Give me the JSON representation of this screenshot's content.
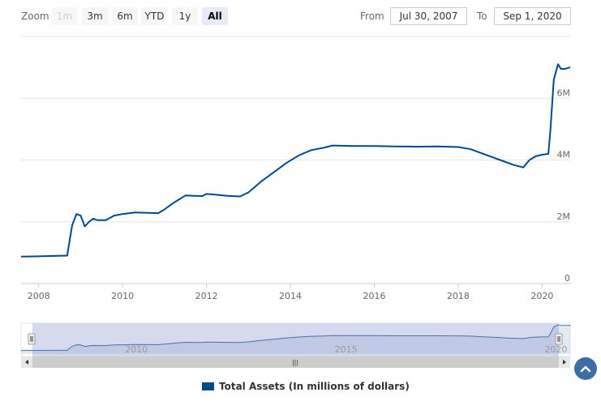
{
  "zoom": {
    "label": "Zoom",
    "buttons": [
      {
        "label": "1m",
        "state": "disabled"
      },
      {
        "label": "3m",
        "state": "normal"
      },
      {
        "label": "6m",
        "state": "normal"
      },
      {
        "label": "YTD",
        "state": "normal"
      },
      {
        "label": "1y",
        "state": "normal"
      },
      {
        "label": "All",
        "state": "active"
      }
    ]
  },
  "range": {
    "from_label": "From",
    "from_value": "Jul 30, 2007",
    "to_label": "To",
    "to_value": "Sep 1, 2020"
  },
  "legend": {
    "label": "Total Assets (In millions of dollars)",
    "color": "#00498b"
  },
  "navigator": {
    "tick_labels": [
      "2010",
      "2015",
      "2020"
    ],
    "scrollbar_grip": "|||"
  },
  "colors": {
    "series": "#00498b",
    "navigator_fill": "#c8cdea",
    "grid": "#e6e6e6",
    "scroll_top_button": "#3d6da5"
  },
  "chart_data": {
    "type": "line",
    "title": "",
    "xlabel": "",
    "ylabel": "",
    "x_axis_ticks": [
      "2008",
      "2010",
      "2012",
      "2014",
      "2016",
      "2018",
      "2020"
    ],
    "y_axis_ticks": [
      "0",
      "2M",
      "4M",
      "6M"
    ],
    "y_tick_values": [
      0,
      2000000,
      4000000,
      6000000
    ],
    "ylim": [
      0,
      8000000
    ],
    "xlim": [
      2007.58,
      2020.67
    ],
    "series": [
      {
        "name": "Total Assets (In millions of dollars)",
        "x": [
          2007.58,
          2008.0,
          2008.5,
          2008.68,
          2008.75,
          2008.8,
          2008.9,
          2009.0,
          2009.1,
          2009.2,
          2009.3,
          2009.4,
          2009.6,
          2009.8,
          2010.0,
          2010.3,
          2010.6,
          2010.85,
          2011.0,
          2011.2,
          2011.5,
          2011.9,
          2012.0,
          2012.2,
          2012.5,
          2012.8,
          2013.0,
          2013.3,
          2013.6,
          2013.9,
          2014.2,
          2014.5,
          2014.8,
          2015.0,
          2015.5,
          2016.0,
          2016.5,
          2017.0,
          2017.5,
          2018.0,
          2018.3,
          2018.6,
          2019.0,
          2019.3,
          2019.55,
          2019.7,
          2019.85,
          2020.0,
          2020.15,
          2020.2,
          2020.28,
          2020.38,
          2020.45,
          2020.55,
          2020.67
        ],
        "values": [
          870000,
          880000,
          900000,
          905000,
          1500000,
          1900000,
          2250000,
          2200000,
          1850000,
          2000000,
          2100000,
          2050000,
          2050000,
          2200000,
          2250000,
          2300000,
          2290000,
          2280000,
          2400000,
          2600000,
          2850000,
          2830000,
          2900000,
          2880000,
          2840000,
          2820000,
          2950000,
          3300000,
          3600000,
          3900000,
          4150000,
          4320000,
          4400000,
          4470000,
          4450000,
          4450000,
          4440000,
          4430000,
          4440000,
          4420000,
          4350000,
          4200000,
          4000000,
          3850000,
          3760000,
          4000000,
          4120000,
          4170000,
          4200000,
          5000000,
          6600000,
          7100000,
          6950000,
          6950000,
          7000000
        ]
      }
    ],
    "navigator": {
      "xlim": [
        2007.58,
        2020.67
      ],
      "tick_labels": [
        "2010",
        "2015",
        "2020"
      ]
    }
  }
}
